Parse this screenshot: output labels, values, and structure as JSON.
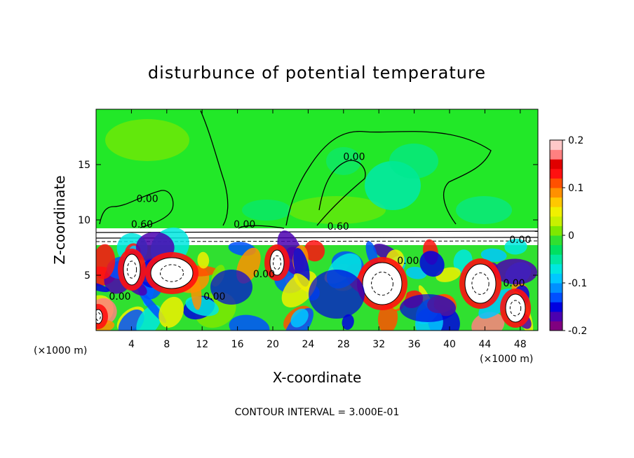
{
  "chart_data": {
    "type": "heatmap",
    "title": "disturbunce of potential temperature",
    "xlabel": "X-coordinate",
    "ylabel": "Z-coordinate",
    "x_unit_left": "(×1000 m)",
    "x_unit_right": "(×1000 m)",
    "footer": "CONTOUR INTERVAL = 3.000E-01",
    "x_ticks": [
      "4",
      "8",
      "12",
      "16",
      "20",
      "24",
      "28",
      "32",
      "36",
      "40",
      "44",
      "48"
    ],
    "x_tick_values": [
      4,
      8,
      12,
      16,
      20,
      24,
      28,
      32,
      36,
      40,
      44,
      48
    ],
    "y_ticks": [
      "5",
      "10",
      "15"
    ],
    "y_tick_values": [
      5,
      10,
      15
    ],
    "xlim": [
      0,
      50
    ],
    "ylim": [
      0,
      20
    ],
    "colorbar": {
      "ticks": [
        "0.2",
        "0.1",
        "0",
        "-0.1",
        "-0.2"
      ],
      "tick_values": [
        0.2,
        0.1,
        0,
        -0.1,
        -0.2
      ],
      "range": [
        -0.2,
        0.2
      ],
      "colors": [
        "#800080",
        "#4b00b0",
        "#0000e0",
        "#0050ff",
        "#0090ff",
        "#00c8ff",
        "#00e8e0",
        "#00e8a0",
        "#00e060",
        "#30e030",
        "#7ee800",
        "#c8f000",
        "#f0f000",
        "#ffc800",
        "#ff9000",
        "#ff5000",
        "#ff1010",
        "#e00000",
        "#ff8080",
        "#ffc8c8"
      ]
    },
    "contour_labels": [
      {
        "text": "0.00",
        "x": 29.2,
        "y": 15.4
      },
      {
        "text": "0.00",
        "x": 5.8,
        "y": 11.6
      },
      {
        "text": "0.60",
        "x": 5.2,
        "y": 9.3
      },
      {
        "text": "0.00",
        "x": 16.8,
        "y": 9.3
      },
      {
        "text": "0.60",
        "x": 27.4,
        "y": 9.1
      },
      {
        "text": "0.00",
        "x": 2.7,
        "y": 2.8
      },
      {
        "text": "0.00",
        "x": 13.4,
        "y": 2.8
      },
      {
        "text": "0.00",
        "x": 19.0,
        "y": 4.8
      },
      {
        "text": "0.00",
        "x": 35.3,
        "y": 6.0
      },
      {
        "text": "0.00",
        "x": 47.3,
        "y": 4.0
      },
      {
        "text": "0.00",
        "x": 48.0,
        "y": 7.9
      }
    ]
  }
}
